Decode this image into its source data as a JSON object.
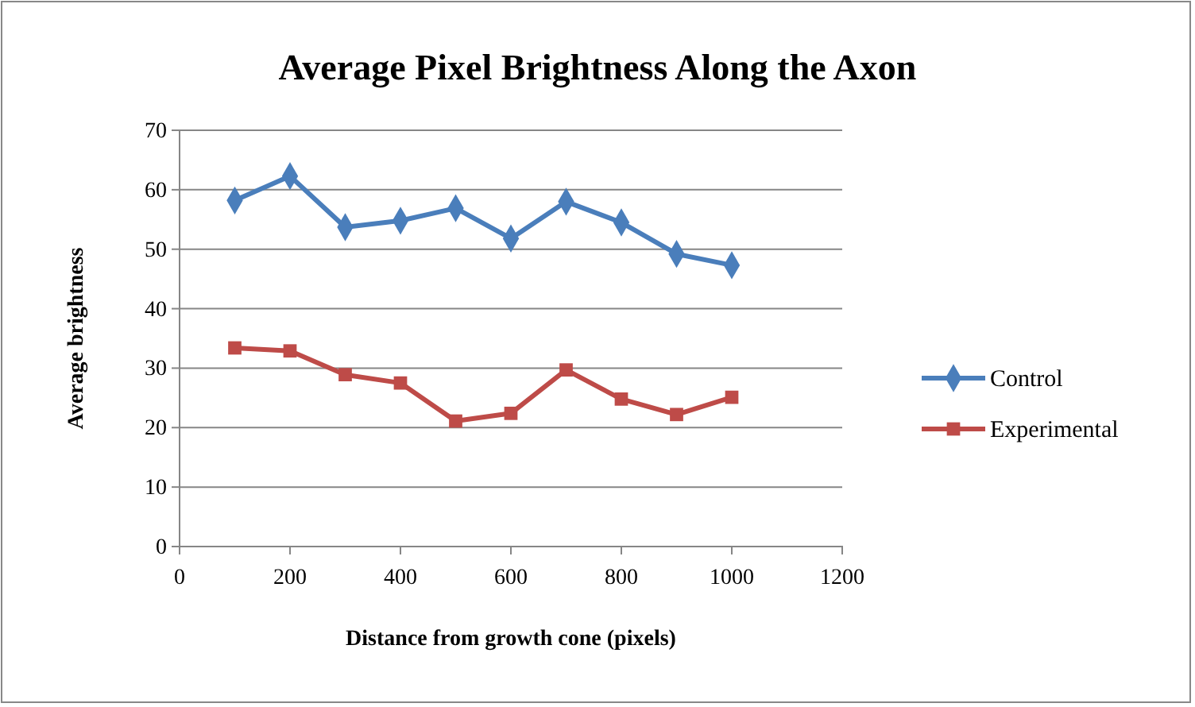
{
  "chart_data": {
    "type": "line",
    "title": "Average Pixel Brightness Along the Axon",
    "xlabel": "Distance from growth cone (pixels)",
    "ylabel": "Average brightness",
    "x": [
      100,
      200,
      300,
      400,
      500,
      600,
      700,
      800,
      900,
      1000
    ],
    "series": [
      {
        "name": "Control",
        "color": "#4a7ebb",
        "marker": "diamond",
        "values": [
          58.2,
          62.3,
          53.7,
          54.8,
          56.9,
          51.8,
          58,
          54.5,
          49.2,
          47.3
        ]
      },
      {
        "name": "Experimental",
        "color": "#be4b48",
        "marker": "square",
        "values": [
          33.4,
          32.9,
          28.9,
          27.5,
          21.1,
          22.4,
          29.7,
          24.8,
          22.2,
          25.1
        ]
      }
    ],
    "xlim": [
      0,
      1200
    ],
    "xticks": [
      0,
      200,
      400,
      600,
      800,
      1000,
      1200
    ],
    "ylim": [
      0,
      70
    ],
    "yticks": [
      0,
      10,
      20,
      30,
      40,
      50,
      60,
      70
    ],
    "grid": "y",
    "legend": "right",
    "line_style": "solid"
  }
}
